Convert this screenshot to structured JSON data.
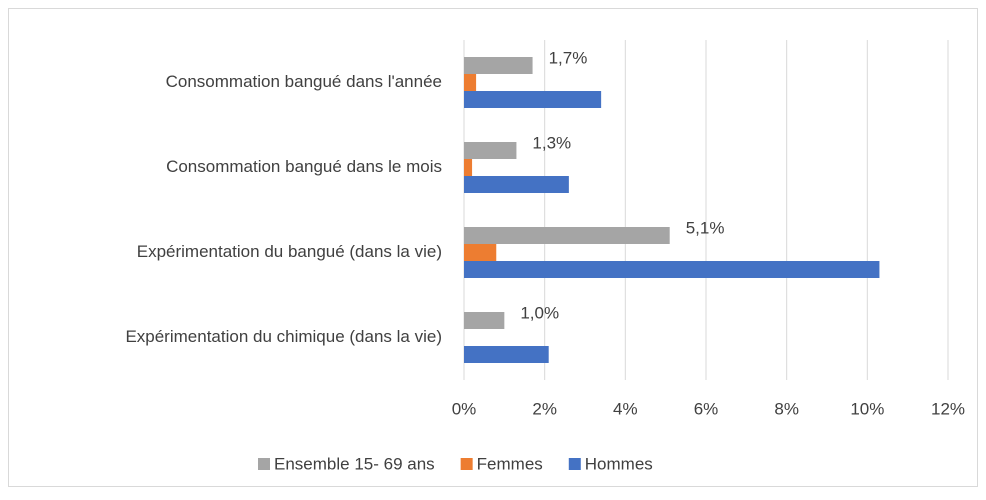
{
  "chart_data": {
    "type": "hbar",
    "categories": [
      "Consommation bangué dans l'année",
      "Consommation bangué dans le mois",
      "Expérimentation du bangué (dans la vie)",
      "Expérimentation du chimique (dans la vie)"
    ],
    "series": [
      {
        "name": "Ensemble 15- 69 ans",
        "color": "#a5a5a5",
        "values": [
          1.7,
          1.3,
          5.1,
          1.0
        ],
        "value_labels": [
          "1,7%",
          "1,3%",
          "5,1%",
          "1,0%"
        ]
      },
      {
        "name": "Femmes",
        "color": "#ed7d31",
        "values": [
          0.3,
          0.2,
          0.8,
          0
        ]
      },
      {
        "name": "Hommes",
        "color": "#4472c4",
        "values": [
          3.4,
          2.6,
          10.3,
          2.1
        ]
      }
    ],
    "xlim": [
      0,
      12
    ],
    "xticks": [
      {
        "value": 0,
        "label": "0%"
      },
      {
        "value": 2,
        "label": "2%"
      },
      {
        "value": 4,
        "label": "4%"
      },
      {
        "value": 6,
        "label": "6%"
      },
      {
        "value": 8,
        "label": "8%"
      },
      {
        "value": 10,
        "label": "10%"
      },
      {
        "value": 12,
        "label": "12%"
      }
    ],
    "grid": true,
    "legend": "bottom"
  }
}
